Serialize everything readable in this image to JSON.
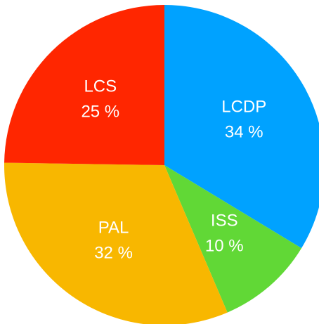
{
  "chart_data": {
    "type": "pie",
    "categories": [
      "LCDP",
      "ISS",
      "PAL",
      "LCS"
    ],
    "values": [
      34,
      10,
      32,
      25
    ],
    "value_labels": [
      "34 %",
      "10 %",
      "32 %",
      "25 %"
    ],
    "colors": [
      "#00a2ff",
      "#61d836",
      "#f8b700",
      "#ff2600"
    ]
  }
}
